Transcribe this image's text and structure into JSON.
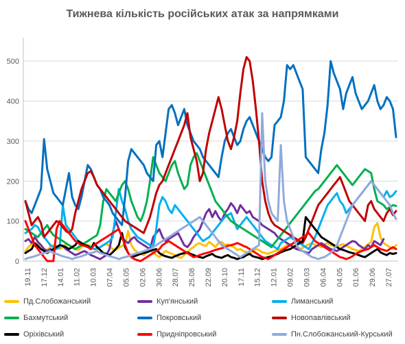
{
  "chart_data": {
    "type": "line",
    "title": "Тижнева кількість російських атак за напрямками",
    "xlabel": "",
    "ylabel": "",
    "ylim": [
      0,
      550
    ],
    "yticks": [
      0,
      100,
      200,
      300,
      400,
      500
    ],
    "grid": true,
    "legend_position": "bottom",
    "x_tick_labels": [
      "19.11",
      "17.12",
      "14.01",
      "11.02",
      "10.03",
      "07.04",
      "05.05",
      "02.06",
      "30.06",
      "28.07",
      "25.08",
      "22.09",
      "20.10",
      "17.11",
      "15.12",
      "12.01",
      "09.02",
      "09.03",
      "06.04",
      "04.05",
      "01.06",
      "29.06",
      "27.07"
    ],
    "series": [
      {
        "name": "Пд.Слобожанський",
        "color": "#ffc000",
        "values": [
          25,
          35,
          42,
          38,
          45,
          40,
          30,
          28,
          35,
          40,
          38,
          30,
          35,
          42,
          40,
          33,
          30,
          28,
          35,
          42,
          40,
          38,
          30,
          28,
          35,
          40,
          42,
          38,
          30,
          28,
          33,
          38,
          42,
          75,
          40,
          28,
          22,
          18,
          15,
          25,
          30,
          22,
          15,
          10,
          18,
          25,
          22,
          18,
          15,
          10,
          8,
          15,
          22,
          30,
          35,
          42,
          45,
          40,
          38,
          48,
          42,
          35,
          45,
          48,
          40,
          42,
          38,
          35,
          28,
          30,
          25,
          22,
          20,
          25,
          30,
          28,
          22,
          20,
          18,
          22,
          25,
          28,
          30,
          35,
          40,
          42,
          38,
          35,
          30,
          33,
          38,
          42,
          45,
          40,
          38,
          35,
          42,
          45,
          40,
          38,
          35,
          40,
          42,
          38,
          35,
          30,
          28,
          25,
          30,
          35,
          42,
          48,
          85,
          95,
          60,
          45,
          40,
          35,
          30,
          40
        ]
      },
      {
        "name": "Куп'янський",
        "color": "#7030a0",
        "values": [
          50,
          55,
          45,
          60,
          48,
          40,
          30,
          25,
          30,
          28,
          35,
          40,
          38,
          30,
          25,
          20,
          15,
          18,
          22,
          25,
          20,
          15,
          12,
          8,
          5,
          10,
          15,
          30,
          70,
          100,
          80,
          60,
          50,
          45,
          55,
          60,
          50,
          45,
          40,
          35,
          30,
          60,
          70,
          80,
          60,
          50,
          55,
          60,
          65,
          70,
          55,
          40,
          35,
          45,
          60,
          70,
          80,
          100,
          120,
          130,
          110,
          125,
          110,
          100,
          120,
          130,
          145,
          135,
          120,
          140,
          130,
          120,
          125,
          110,
          105,
          100,
          90,
          85,
          80,
          75,
          70,
          60,
          55,
          50,
          45,
          40,
          35,
          30,
          28,
          25,
          22,
          20,
          30,
          35,
          40,
          45,
          40,
          35,
          30,
          28,
          25,
          30,
          35,
          40,
          45,
          50,
          48,
          40,
          35,
          30,
          40,
          35,
          50,
          45,
          40,
          55
        ]
      },
      {
        "name": "Лиманський",
        "color": "#00b0f0",
        "values": [
          70,
          75,
          80,
          90,
          85,
          70,
          60,
          50,
          40,
          35,
          30,
          35,
          140,
          90,
          80,
          70,
          60,
          50,
          45,
          40,
          38,
          35,
          30,
          32,
          35,
          40,
          45,
          50,
          60,
          120,
          180,
          150,
          130,
          100,
          80,
          70,
          60,
          55,
          50,
          45,
          40,
          35,
          80,
          140,
          160,
          150,
          130,
          120,
          140,
          130,
          120,
          110,
          100,
          90,
          80,
          70,
          60,
          50,
          55,
          60,
          70,
          80,
          90,
          100,
          110,
          115,
          120,
          100,
          80,
          90,
          100,
          110,
          100,
          90,
          80,
          70,
          60,
          50,
          45,
          40,
          35,
          30,
          45,
          50,
          55,
          60,
          55,
          50,
          45,
          40,
          35,
          30,
          45,
          60,
          80,
          100,
          120,
          140,
          150,
          160,
          170,
          150,
          140,
          120,
          130,
          140,
          150,
          160,
          170,
          180,
          190,
          200,
          190,
          180,
          170,
          160,
          175,
          160,
          165,
          175
        ]
      },
      {
        "name": "Бахмутський",
        "color": "#00b050",
        "values": [
          80,
          75,
          70,
          65,
          60,
          70,
          80,
          90,
          75,
          65,
          60,
          55,
          50,
          45,
          40,
          35,
          30,
          35,
          40,
          45,
          50,
          55,
          60,
          65,
          90,
          150,
          180,
          170,
          160,
          150,
          170,
          190,
          200,
          180,
          150,
          130,
          110,
          100,
          120,
          150,
          200,
          260,
          240,
          220,
          210,
          200,
          220,
          240,
          250,
          220,
          200,
          180,
          190,
          240,
          260,
          270,
          250,
          230,
          210,
          190,
          170,
          150,
          140,
          130,
          120,
          110,
          100,
          95,
          90,
          85,
          80,
          75,
          70,
          65,
          60,
          55,
          50,
          45,
          40,
          35,
          45,
          55,
          65,
          75,
          85,
          95,
          105,
          115,
          125,
          135,
          145,
          155,
          165,
          175,
          180,
          190,
          200,
          210,
          220,
          230,
          240,
          230,
          220,
          210,
          200,
          190,
          200,
          210,
          220,
          230,
          225,
          220,
          180,
          150,
          145,
          140,
          130,
          135,
          140,
          138
        ]
      },
      {
        "name": "Покровський",
        "color": "#0070c0",
        "values": [
          150,
          130,
          120,
          140,
          160,
          180,
          305,
          230,
          200,
          170,
          160,
          150,
          140,
          180,
          220,
          160,
          140,
          130,
          160,
          200,
          240,
          230,
          210,
          190,
          180,
          160,
          150,
          140,
          120,
          110,
          100,
          90,
          160,
          250,
          280,
          270,
          260,
          250,
          240,
          220,
          210,
          200,
          290,
          300,
          260,
          320,
          380,
          390,
          370,
          340,
          360,
          380,
          340,
          320,
          300,
          290,
          280,
          260,
          250,
          240,
          230,
          220,
          210,
          260,
          300,
          320,
          330,
          310,
          290,
          300,
          330,
          350,
          360,
          340,
          320,
          300,
          280,
          260,
          250,
          260,
          340,
          350,
          360,
          400,
          490,
          480,
          490,
          470,
          450,
          430,
          260,
          250,
          240,
          230,
          220,
          280,
          320,
          390,
          500,
          470,
          450,
          430,
          380,
          420,
          440,
          460,
          420,
          400,
          380,
          390,
          400,
          420,
          440,
          400,
          380,
          390,
          410,
          400,
          380,
          310
        ]
      },
      {
        "name": "Новопавлівський",
        "color": "#c00000",
        "values": [
          150,
          120,
          90,
          100,
          110,
          95,
          60,
          70,
          80,
          90,
          100,
          95,
          85,
          75,
          70,
          80,
          120,
          150,
          180,
          200,
          220,
          225,
          210,
          190,
          180,
          170,
          160,
          150,
          140,
          130,
          120,
          110,
          100,
          95,
          90,
          85,
          80,
          75,
          70,
          90,
          110,
          140,
          170,
          190,
          200,
          220,
          240,
          260,
          280,
          300,
          320,
          340,
          370,
          310,
          280,
          250,
          200,
          220,
          280,
          320,
          350,
          380,
          410,
          380,
          340,
          300,
          280,
          310,
          350,
          420,
          480,
          510,
          500,
          450,
          380,
          300,
          200,
          150,
          120,
          100,
          90,
          85,
          80,
          75,
          70,
          65,
          60,
          55,
          50,
          45,
          60,
          80,
          100,
          120,
          140,
          150,
          160,
          170,
          180,
          190,
          200,
          210,
          190,
          170,
          150,
          140,
          130,
          120,
          110,
          100,
          140,
          150,
          130,
          120,
          110,
          100,
          120,
          130,
          115,
          125
        ]
      },
      {
        "name": "Оріхівський",
        "color": "#000000",
        "values": [
          20,
          25,
          30,
          45,
          38,
          30,
          25,
          20,
          25,
          30,
          35,
          40,
          38,
          35,
          30,
          35,
          40,
          50,
          45,
          40,
          38,
          30,
          45,
          35,
          28,
          20,
          18,
          15,
          22,
          30,
          40,
          70,
          35,
          20,
          10,
          12,
          15,
          18,
          20,
          22,
          25,
          28,
          30,
          20,
          15,
          12,
          10,
          8,
          12,
          15,
          18,
          20,
          22,
          18,
          15,
          12,
          10,
          8,
          12,
          15,
          18,
          12,
          10,
          8,
          12,
          15,
          10,
          8,
          5,
          8,
          10,
          15,
          18,
          12,
          10,
          8,
          5,
          8,
          10,
          12,
          15,
          18,
          22,
          25,
          28,
          30,
          35,
          40,
          45,
          50,
          110,
          100,
          90,
          80,
          70,
          60,
          55,
          50,
          45,
          40,
          35,
          30,
          28,
          25,
          22,
          20,
          18,
          15,
          12,
          10,
          15,
          20,
          25,
          30,
          22,
          18,
          15,
          20,
          18,
          20
        ]
      },
      {
        "name": "Придніпровський",
        "color": "#ff0000",
        "values": [
          100,
          80,
          60,
          40,
          30,
          20,
          10,
          0,
          0,
          0,
          80,
          100,
          90,
          80,
          70,
          60,
          50,
          45,
          40,
          38,
          35,
          30,
          40,
          45,
          50,
          55,
          60,
          65,
          70,
          75,
          80,
          60,
          40,
          20,
          10,
          5,
          2,
          0,
          5,
          10,
          15,
          20,
          25,
          30,
          40,
          45,
          50,
          45,
          40,
          35,
          30,
          25,
          20,
          15,
          10,
          12,
          15,
          18,
          20,
          22,
          25,
          28,
          30,
          32,
          35,
          38,
          40,
          42,
          45,
          42,
          38,
          35,
          30,
          25,
          20,
          15,
          10,
          8,
          5,
          10,
          15,
          20,
          25,
          30,
          35,
          40,
          45,
          50,
          55,
          60,
          65,
          70,
          60,
          50,
          45,
          40,
          35,
          30,
          25,
          20,
          15,
          10,
          8,
          5,
          8,
          12,
          18,
          22,
          25,
          28,
          30,
          35,
          40,
          35,
          30,
          28,
          25,
          30,
          35,
          30
        ]
      },
      {
        "name": "Пн.Слобожанський-Курський",
        "color": "#8faadc",
        "values": [
          5,
          8,
          10,
          12,
          15,
          18,
          20,
          22,
          25,
          20,
          18,
          15,
          12,
          10,
          8,
          5,
          8,
          10,
          12,
          15,
          18,
          20,
          22,
          25,
          20,
          18,
          15,
          12,
          10,
          8,
          5,
          8,
          10,
          12,
          15,
          18,
          20,
          22,
          25,
          28,
          30,
          35,
          40,
          45,
          50,
          55,
          60,
          65,
          70,
          75,
          80,
          85,
          90,
          95,
          100,
          105,
          110,
          100,
          90,
          80,
          70,
          60,
          50,
          40,
          35,
          30,
          25,
          20,
          15,
          10,
          15,
          20,
          25,
          30,
          35,
          40,
          370,
          200,
          150,
          120,
          110,
          100,
          290,
          150,
          100,
          80,
          60,
          40,
          30,
          25,
          20,
          15,
          10,
          8,
          5,
          8,
          10,
          15,
          20,
          30,
          40,
          60,
          80,
          100,
          120,
          140,
          150,
          160,
          170,
          180,
          190,
          200,
          190,
          180,
          170,
          160,
          150,
          140,
          120,
          105
        ]
      }
    ]
  }
}
